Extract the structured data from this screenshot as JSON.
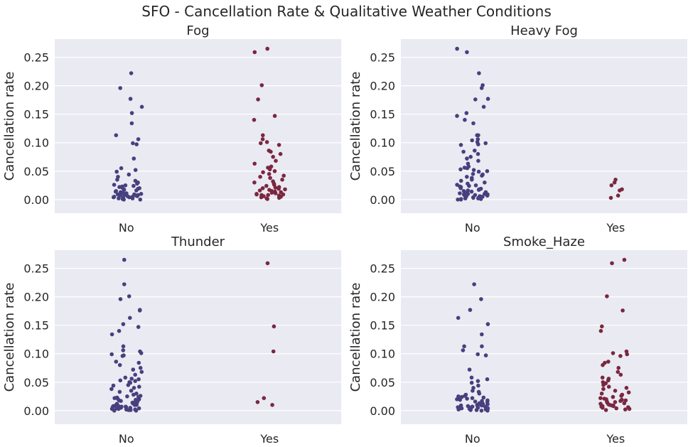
{
  "suptitle": "SFO - Cancellation Rate & Qualitative Weather Conditions",
  "colors": {
    "no": "#46407f",
    "yes": "#7a2740",
    "panel_bg": "#eaeaf2",
    "grid": "#ffffff"
  },
  "chart_data": [
    {
      "type": "scatter",
      "subtype": "strip",
      "title": "Fog",
      "xlabel": "",
      "ylabel": "Cancellation rate",
      "categories": [
        "No",
        "Yes"
      ],
      "ylim": [
        -0.024,
        0.282
      ],
      "yticks": [
        "0.00",
        "0.05",
        "0.10",
        "0.15",
        "0.20",
        "0.25"
      ],
      "grid": true,
      "series": [
        {
          "values": [
            0.222,
            0.196,
            0.177,
            0.163,
            0.152,
            0.134,
            0.113,
            0.106,
            0.099,
            0.097,
            0.072,
            0.055,
            0.052,
            0.049,
            0.044,
            0.04,
            0.035,
            0.033,
            0.03,
            0.028,
            0.026,
            0.025,
            0.024,
            0.023,
            0.022,
            0.021,
            0.02,
            0.019,
            0.018,
            0.017,
            0.016,
            0.015,
            0.014,
            0.013,
            0.012,
            0.011,
            0.01,
            0.01,
            0.009,
            0.009,
            0.008,
            0.008,
            0.007,
            0.007,
            0.006,
            0.006,
            0.005,
            0.005,
            0.004,
            0.004,
            0.003,
            0.003,
            0.002,
            0.002,
            0.001,
            0.001,
            0.0,
            0.0
          ]
        },
        {
          "values": [
            0.265,
            0.259,
            0.201,
            0.176,
            0.147,
            0.14,
            0.113,
            0.106,
            0.101,
            0.099,
            0.096,
            0.086,
            0.084,
            0.08,
            0.075,
            0.068,
            0.063,
            0.058,
            0.056,
            0.053,
            0.05,
            0.048,
            0.045,
            0.042,
            0.04,
            0.038,
            0.035,
            0.032,
            0.03,
            0.028,
            0.026,
            0.024,
            0.022,
            0.021,
            0.02,
            0.019,
            0.018,
            0.017,
            0.016,
            0.015,
            0.014,
            0.013,
            0.012,
            0.011,
            0.01,
            0.009,
            0.009,
            0.008,
            0.008,
            0.007,
            0.006,
            0.005,
            0.004,
            0.003,
            0.002,
            0.001
          ]
        }
      ]
    },
    {
      "type": "scatter",
      "subtype": "strip",
      "title": "Heavy Fog",
      "xlabel": "",
      "ylabel": "Cancellation rate",
      "categories": [
        "No",
        "Yes"
      ],
      "ylim": [
        -0.024,
        0.282
      ],
      "yticks": [
        "0.00",
        "0.05",
        "0.10",
        "0.15",
        "0.20",
        "0.25"
      ],
      "grid": true,
      "series": [
        {
          "values": [
            0.265,
            0.259,
            0.222,
            0.201,
            0.196,
            0.177,
            0.176,
            0.163,
            0.152,
            0.147,
            0.14,
            0.134,
            0.113,
            0.113,
            0.106,
            0.104,
            0.101,
            0.099,
            0.097,
            0.096,
            0.086,
            0.084,
            0.08,
            0.075,
            0.072,
            0.068,
            0.063,
            0.058,
            0.056,
            0.055,
            0.053,
            0.052,
            0.05,
            0.049,
            0.045,
            0.044,
            0.042,
            0.04,
            0.038,
            0.035,
            0.033,
            0.03,
            0.028,
            0.026,
            0.025,
            0.024,
            0.023,
            0.022,
            0.021,
            0.02,
            0.019,
            0.018,
            0.017,
            0.016,
            0.015,
            0.014,
            0.013,
            0.012,
            0.011,
            0.01,
            0.01,
            0.009,
            0.009,
            0.008,
            0.008,
            0.007,
            0.007,
            0.006,
            0.006,
            0.005,
            0.005,
            0.004,
            0.004,
            0.003,
            0.003,
            0.002,
            0.002,
            0.001,
            0.001,
            0.0,
            0.0
          ]
        },
        {
          "values": [
            0.035,
            0.03,
            0.025,
            0.018,
            0.016,
            0.007,
            0.003
          ]
        }
      ]
    },
    {
      "type": "scatter",
      "subtype": "strip",
      "title": "Thunder",
      "xlabel": "",
      "ylabel": "Cancellation rate",
      "categories": [
        "No",
        "Yes"
      ],
      "ylim": [
        -0.024,
        0.282
      ],
      "yticks": [
        "0.00",
        "0.05",
        "0.10",
        "0.15",
        "0.20",
        "0.25"
      ],
      "grid": true,
      "series": [
        {
          "values": [
            0.265,
            0.222,
            0.201,
            0.196,
            0.177,
            0.176,
            0.163,
            0.152,
            0.147,
            0.14,
            0.134,
            0.113,
            0.106,
            0.104,
            0.101,
            0.099,
            0.097,
            0.096,
            0.086,
            0.084,
            0.08,
            0.075,
            0.072,
            0.068,
            0.063,
            0.058,
            0.056,
            0.055,
            0.053,
            0.052,
            0.05,
            0.049,
            0.045,
            0.044,
            0.042,
            0.04,
            0.038,
            0.035,
            0.033,
            0.03,
            0.028,
            0.026,
            0.025,
            0.024,
            0.023,
            0.022,
            0.021,
            0.02,
            0.019,
            0.018,
            0.017,
            0.016,
            0.015,
            0.014,
            0.013,
            0.012,
            0.011,
            0.01,
            0.01,
            0.009,
            0.009,
            0.008,
            0.008,
            0.007,
            0.007,
            0.006,
            0.006,
            0.005,
            0.005,
            0.004,
            0.004,
            0.003,
            0.003,
            0.002,
            0.002,
            0.001,
            0.001,
            0.0,
            0.0
          ]
        },
        {
          "values": [
            0.259,
            0.148,
            0.104,
            0.022,
            0.015,
            0.01
          ]
        }
      ]
    },
    {
      "type": "scatter",
      "subtype": "strip",
      "title": "Smoke_Haze",
      "xlabel": "",
      "ylabel": "Cancellation rate",
      "categories": [
        "No",
        "Yes"
      ],
      "ylim": [
        -0.024,
        0.282
      ],
      "yticks": [
        "0.00",
        "0.05",
        "0.10",
        "0.15",
        "0.20",
        "0.25"
      ],
      "grid": true,
      "series": [
        {
          "values": [
            0.222,
            0.196,
            0.177,
            0.163,
            0.152,
            0.134,
            0.113,
            0.113,
            0.106,
            0.099,
            0.097,
            0.072,
            0.058,
            0.055,
            0.052,
            0.049,
            0.044,
            0.04,
            0.035,
            0.033,
            0.03,
            0.028,
            0.026,
            0.025,
            0.024,
            0.023,
            0.022,
            0.021,
            0.02,
            0.019,
            0.018,
            0.017,
            0.016,
            0.015,
            0.014,
            0.013,
            0.012,
            0.011,
            0.01,
            0.01,
            0.009,
            0.009,
            0.008,
            0.008,
            0.007,
            0.007,
            0.006,
            0.006,
            0.005,
            0.005,
            0.004,
            0.004,
            0.003,
            0.003,
            0.002,
            0.002,
            0.001,
            0.001,
            0.0,
            0.0
          ]
        },
        {
          "values": [
            0.265,
            0.259,
            0.201,
            0.176,
            0.148,
            0.14,
            0.104,
            0.101,
            0.099,
            0.096,
            0.086,
            0.084,
            0.08,
            0.075,
            0.068,
            0.063,
            0.058,
            0.056,
            0.053,
            0.05,
            0.048,
            0.045,
            0.042,
            0.04,
            0.038,
            0.035,
            0.032,
            0.03,
            0.028,
            0.026,
            0.024,
            0.022,
            0.021,
            0.02,
            0.019,
            0.018,
            0.017,
            0.016,
            0.015,
            0.014,
            0.013,
            0.012,
            0.011,
            0.01,
            0.009,
            0.009,
            0.008,
            0.008,
            0.007,
            0.006,
            0.005,
            0.004,
            0.003,
            0.002,
            0.001
          ]
        }
      ]
    }
  ]
}
